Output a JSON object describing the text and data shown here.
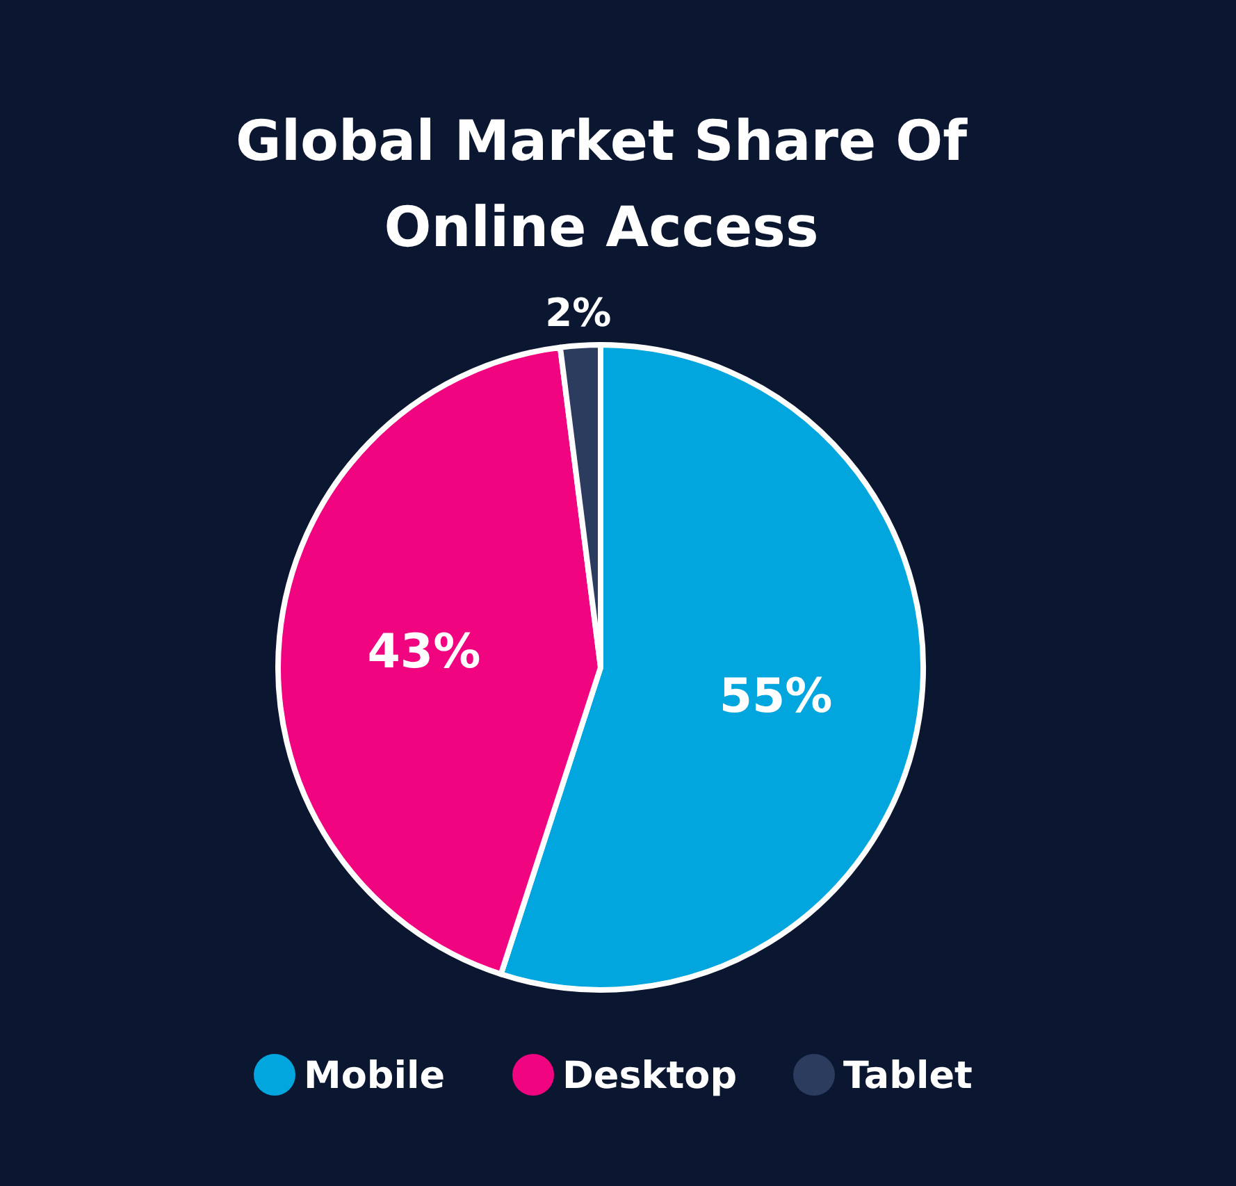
{
  "chart_data": {
    "type": "pie",
    "title": "Global Market Share Of Online Access",
    "categories": [
      "Mobile",
      "Desktop",
      "Tablet"
    ],
    "values": [
      55,
      43,
      2
    ],
    "colors": [
      "#00a6dd",
      "#f0047f",
      "#2b3c5e"
    ],
    "value_labels": [
      "55%",
      "43%",
      "2%"
    ],
    "legend": "bottom"
  }
}
